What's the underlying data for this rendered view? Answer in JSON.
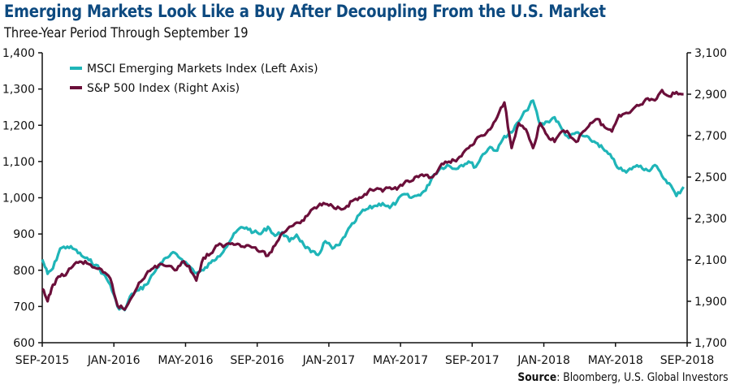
{
  "colors": {
    "title": "#0d4a80",
    "msci": "#1fb5b8",
    "sp500": "#6b0f3a",
    "axis": "#111111"
  },
  "source": {
    "label": "Source",
    "text": ": Bloomberg, U.S. Global Investors"
  },
  "chart_data": {
    "type": "line",
    "title": "Emerging Markets Look Like a Buy After Decoupling From the U.S. Market",
    "subtitle": "Three-Year Period Through September 19",
    "xlabel": "",
    "x_ticks": [
      "SEP-2015",
      "JAN-2016",
      "MAY-2016",
      "SEP-2016",
      "JAN-2017",
      "MAY-2017",
      "SEP-2017",
      "JAN-2018",
      "MAY-2018",
      "SEP-2018"
    ],
    "x_range_months": [
      0,
      36
    ],
    "left_axis": {
      "label": "MSCI Emerging Markets Index",
      "ylim": [
        600,
        1400
      ],
      "ticks": [
        "600",
        "700",
        "800",
        "900",
        "1,000",
        "1,100",
        "1,200",
        "1,300",
        "1,400"
      ]
    },
    "right_axis": {
      "label": "S&P 500 Index",
      "ylim": [
        1700,
        3100
      ],
      "ticks": [
        "1,700",
        "1,900",
        "2,100",
        "2,300",
        "2,500",
        "2,700",
        "2,900",
        "3,100"
      ]
    },
    "grid": false,
    "legend_position": "top-left",
    "series": [
      {
        "name": "MSCI Emerging Markets Index (Left Axis)",
        "axis": "left",
        "x_months": [
          0,
          0.3,
          0.6,
          1,
          1.4,
          1.8,
          2.2,
          2.6,
          3,
          3.4,
          3.8,
          4.2,
          4.6,
          5,
          5.4,
          5.8,
          6.2,
          6.6,
          7,
          7.4,
          7.8,
          8.2,
          8.6,
          9,
          9.4,
          9.8,
          10.2,
          10.6,
          11,
          11.4,
          11.8,
          12.2,
          12.6,
          13,
          13.4,
          13.8,
          14.2,
          14.6,
          15,
          15.4,
          15.8,
          16.2,
          16.6,
          17,
          17.4,
          17.8,
          18.2,
          18.6,
          19,
          19.4,
          19.8,
          20.2,
          20.6,
          21,
          21.4,
          21.8,
          22.2,
          22.6,
          23,
          23.4,
          23.8,
          24.2,
          24.6,
          25,
          25.4,
          25.8,
          26.2,
          26.6,
          27,
          27.4,
          27.8,
          28.2,
          28.6,
          29,
          29.4,
          29.8,
          30.2,
          30.6,
          31,
          31.4,
          31.8,
          32.2,
          32.6,
          33,
          33.4,
          33.8,
          34.2,
          34.6,
          35,
          35.4,
          35.8,
          36
        ],
        "values": [
          830,
          790,
          805,
          860,
          865,
          858,
          840,
          828,
          815,
          790,
          760,
          700,
          690,
          735,
          745,
          760,
          790,
          820,
          835,
          848,
          830,
          812,
          792,
          800,
          820,
          838,
          860,
          890,
          915,
          918,
          905,
          900,
          920,
          895,
          905,
          880,
          898,
          870,
          850,
          842,
          880,
          860,
          870,
          905,
          930,
          960,
          970,
          978,
          985,
          972,
          990,
          1010,
          1000,
          1008,
          1020,
          1060,
          1080,
          1090,
          1080,
          1090,
          1100,
          1085,
          1120,
          1140,
          1130,
          1170,
          1180,
          1210,
          1240,
          1268,
          1200,
          1210,
          1222,
          1190,
          1165,
          1180,
          1170,
          1160,
          1150,
          1130,
          1110,
          1080,
          1070,
          1085,
          1088,
          1075,
          1090,
          1060,
          1040,
          1005,
          1030
        ],
        "color": "#1fb5b8"
      },
      {
        "name": "S&P 500 Index (Right Axis)",
        "axis": "right",
        "x_months": [
          0,
          0.3,
          0.6,
          1,
          1.4,
          1.8,
          2.2,
          2.6,
          3,
          3.4,
          3.8,
          4.2,
          4.6,
          5,
          5.4,
          5.8,
          6.2,
          6.6,
          7,
          7.4,
          7.8,
          8.2,
          8.6,
          9,
          9.4,
          9.8,
          10.2,
          10.6,
          11,
          11.4,
          11.8,
          12.2,
          12.6,
          13,
          13.4,
          13.8,
          14.2,
          14.6,
          15,
          15.4,
          15.8,
          16.2,
          16.6,
          17,
          17.4,
          17.8,
          18.2,
          18.6,
          19,
          19.4,
          19.8,
          20.2,
          20.6,
          21,
          21.4,
          21.8,
          22.2,
          22.6,
          23,
          23.4,
          23.8,
          24.2,
          24.6,
          25,
          25.4,
          25.8,
          26.2,
          26.6,
          27,
          27.4,
          27.8,
          28.2,
          28.6,
          29,
          29.4,
          29.8,
          30.2,
          30.6,
          31,
          31.4,
          31.8,
          32.2,
          32.6,
          33,
          33.4,
          33.8,
          34.2,
          34.6,
          35,
          35.4,
          35.8,
          36
        ],
        "values": [
          1960,
          1900,
          1980,
          2020,
          2040,
          2080,
          2090,
          2080,
          2060,
          2040,
          2010,
          1880,
          1860,
          1920,
          1990,
          2030,
          2060,
          2080,
          2070,
          2050,
          2090,
          2070,
          2000,
          2110,
          2130,
          2170,
          2170,
          2180,
          2175,
          2170,
          2160,
          2140,
          2120,
          2170,
          2230,
          2260,
          2280,
          2290,
          2340,
          2360,
          2370,
          2360,
          2350,
          2360,
          2390,
          2400,
          2430,
          2440,
          2430,
          2450,
          2440,
          2470,
          2480,
          2500,
          2510,
          2500,
          2550,
          2570,
          2580,
          2600,
          2640,
          2680,
          2700,
          2730,
          2790,
          2860,
          2640,
          2760,
          2730,
          2640,
          2760,
          2700,
          2670,
          2720,
          2710,
          2670,
          2720,
          2760,
          2780,
          2740,
          2720,
          2800,
          2810,
          2830,
          2850,
          2880,
          2870,
          2920,
          2890,
          2910,
          2900
        ],
        "color": "#6b0f3a"
      }
    ]
  }
}
